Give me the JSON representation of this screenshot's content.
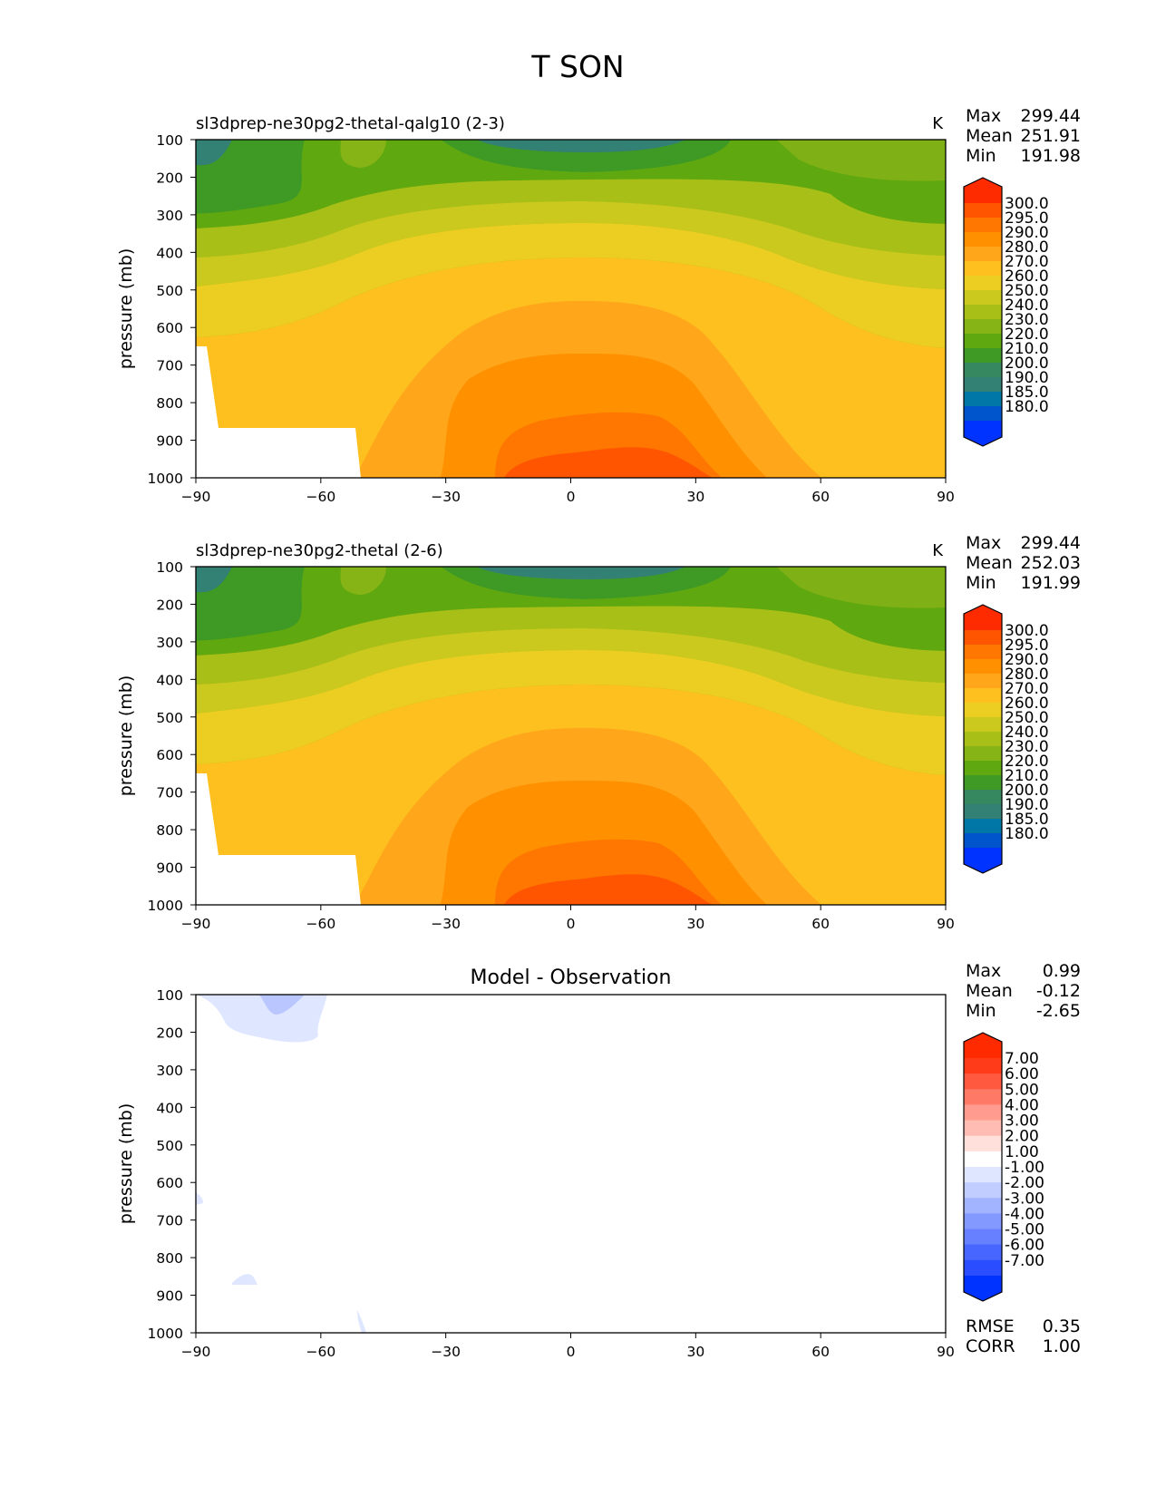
{
  "page_title": "T SON",
  "chart_data": [
    {
      "type": "contour",
      "title": "sl3dprep-ne30pg2-thetal-qalg10 (2-3)",
      "units": "K",
      "ylabel": "pressure (mb)",
      "xlabel": "",
      "xlim": [
        -90,
        90
      ],
      "ylim": [
        1000,
        100
      ],
      "xticks": [
        "−90",
        "−60",
        "−30",
        "0",
        "30",
        "60",
        "90"
      ],
      "yticks": [
        "100",
        "200",
        "300",
        "400",
        "500",
        "600",
        "700",
        "800",
        "900",
        "1000"
      ],
      "stats": [
        {
          "label": "Max",
          "value": "299.44"
        },
        {
          "label": "Mean",
          "value": "251.91"
        },
        {
          "label": "Min",
          "value": "191.98"
        }
      ],
      "colorbar_labels": [
        "300.0",
        "295.0",
        "290.0",
        "280.0",
        "270.0",
        "260.0",
        "250.0",
        "240.0",
        "230.0",
        "220.0",
        "210.0",
        "200.0",
        "190.0",
        "185.0",
        "180.0"
      ],
      "colorbar_colors": [
        "#ff2b00",
        "#ff5500",
        "#ff7700",
        "#ff9000",
        "#ffa61a",
        "#fdc01f",
        "#ecce22",
        "#cbc81e",
        "#a8bf18",
        "#86b315",
        "#5fa80f",
        "#3e9a24",
        "#368860",
        "#338074",
        "#0077a6",
        "#0055cc",
        "#0033ff"
      ]
    },
    {
      "type": "contour",
      "title": "sl3dprep-ne30pg2-thetal (2-6)",
      "units": "K",
      "ylabel": "pressure (mb)",
      "xlabel": "",
      "xlim": [
        -90,
        90
      ],
      "ylim": [
        1000,
        100
      ],
      "xticks": [
        "−90",
        "−60",
        "−30",
        "0",
        "30",
        "60",
        "90"
      ],
      "yticks": [
        "100",
        "200",
        "300",
        "400",
        "500",
        "600",
        "700",
        "800",
        "900",
        "1000"
      ],
      "stats": [
        {
          "label": "Max",
          "value": "299.44"
        },
        {
          "label": "Mean",
          "value": "252.03"
        },
        {
          "label": "Min",
          "value": "191.99"
        }
      ],
      "colorbar_labels": [
        "300.0",
        "295.0",
        "290.0",
        "280.0",
        "270.0",
        "260.0",
        "250.0",
        "240.0",
        "230.0",
        "220.0",
        "210.0",
        "200.0",
        "190.0",
        "185.0",
        "180.0"
      ],
      "colorbar_colors": [
        "#ff2b00",
        "#ff5500",
        "#ff7700",
        "#ff9000",
        "#ffa61a",
        "#fdc01f",
        "#ecce22",
        "#cbc81e",
        "#a8bf18",
        "#86b315",
        "#5fa80f",
        "#3e9a24",
        "#368860",
        "#338074",
        "#0077a6",
        "#0055cc",
        "#0033ff"
      ]
    },
    {
      "type": "contour",
      "title": "Model - Observation",
      "units": "",
      "ylabel": "pressure (mb)",
      "xlabel": "",
      "xlim": [
        -90,
        90
      ],
      "ylim": [
        1000,
        100
      ],
      "xticks": [
        "−90",
        "−60",
        "−30",
        "0",
        "30",
        "60",
        "90"
      ],
      "yticks": [
        "100",
        "200",
        "300",
        "400",
        "500",
        "600",
        "700",
        "800",
        "900",
        "1000"
      ],
      "stats": [
        {
          "label": "Max",
          "value": "0.99"
        },
        {
          "label": "Mean",
          "value": "-0.12"
        },
        {
          "label": "Min",
          "value": "-2.65"
        }
      ],
      "colorbar_labels": [
        "7.00",
        "6.00",
        "5.00",
        "4.00",
        "3.00",
        "2.00",
        "1.00",
        "-1.00",
        "-2.00",
        "-3.00",
        "-4.00",
        "-5.00",
        "-6.00",
        "-7.00"
      ],
      "colorbar_colors": [
        "#ff2a00",
        "#ff3b1a",
        "#ff5a40",
        "#ff7a66",
        "#ff9c8f",
        "#ffbcb3",
        "#ffe0da",
        "#ffffff",
        "#dfe6ff",
        "#c1ccff",
        "#a2b3ff",
        "#8399ff",
        "#6680ff",
        "#4766ff",
        "#2a4dff",
        "#0033ff"
      ],
      "extra_stats": [
        {
          "label": "RMSE",
          "value": "0.35"
        },
        {
          "label": "CORR",
          "value": "1.00"
        }
      ]
    }
  ]
}
